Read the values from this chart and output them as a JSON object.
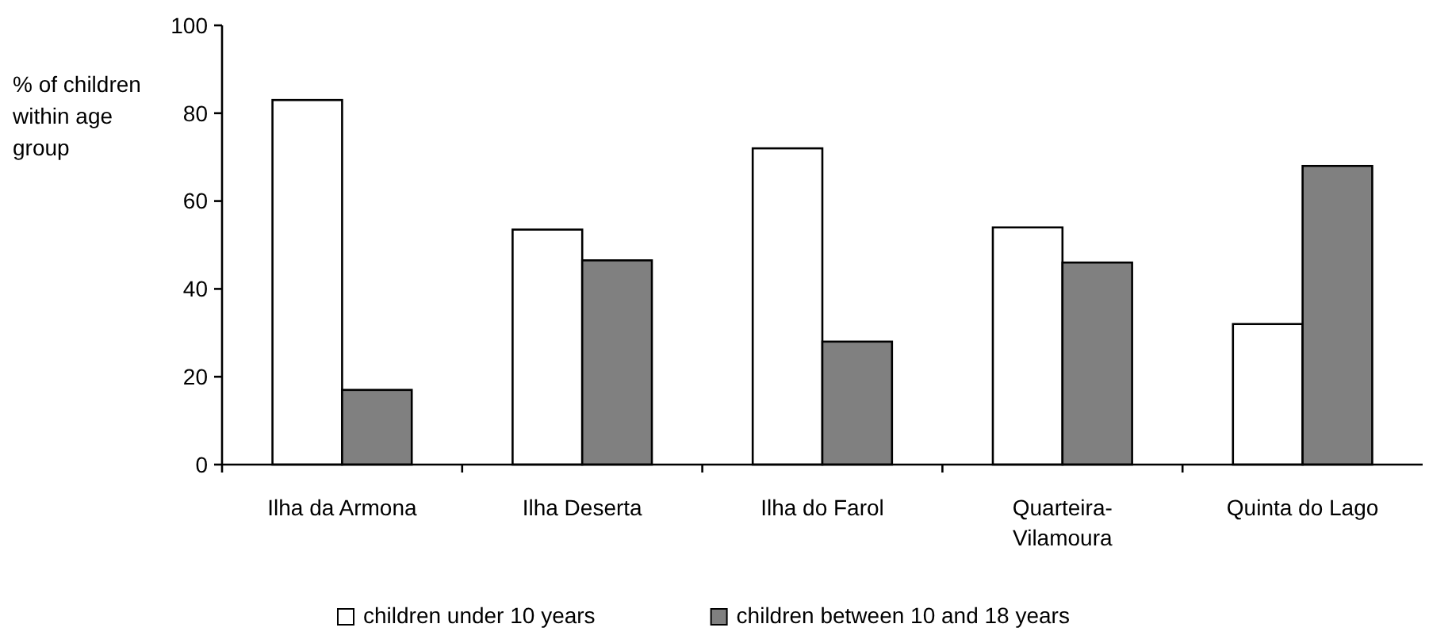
{
  "chart_data": {
    "type": "bar",
    "ylabel": "% of children within age group",
    "categories": [
      "Ilha da Armona",
      "Ilha Deserta",
      "Ilha do Farol",
      "Quarteira-Vilamoura",
      "Quinta do Lago"
    ],
    "series": [
      {
        "name": "children under 10 years",
        "color": "#ffffff",
        "values": [
          83,
          53.5,
          72,
          54,
          32
        ]
      },
      {
        "name": "children between 10 and 18 years",
        "color": "#808080",
        "values": [
          17,
          46.5,
          28,
          46,
          68
        ]
      }
    ],
    "ylim": [
      0,
      100
    ],
    "yticks": [
      0,
      20,
      40,
      60,
      80,
      100
    ],
    "legend": "bottom"
  }
}
